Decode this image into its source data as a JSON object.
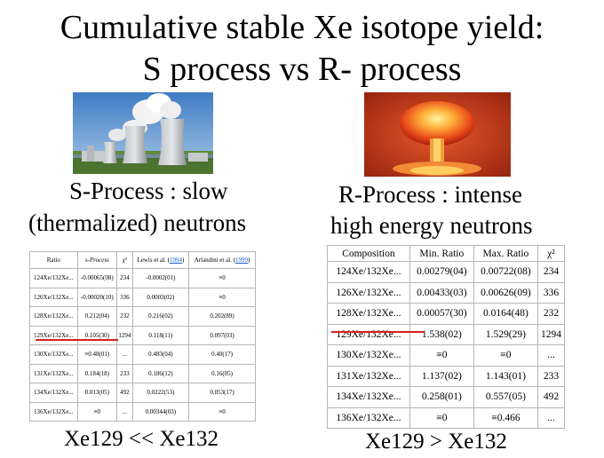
{
  "title": {
    "line1": "Cumulative stable Xe isotope yield:",
    "line2": "S process vs R- process"
  },
  "s_process": {
    "label1": "S-Process : slow",
    "label2": "(thermalized) neutrons",
    "footer": "Xe129 << Xe132",
    "table": {
      "headers": [
        "Ratio",
        "s-Process",
        "χ²",
        "Lewis et al. (",
        "1994",
        ")",
        "Arlandini et al. (",
        "1999",
        ")"
      ],
      "rows": [
        [
          "124Xe/132Xe...",
          "-0.00065(08)",
          "234",
          "-0.0002(01)",
          "≡0"
        ],
        [
          "126Xe/132Xe...",
          "-0.00020(10)",
          "336",
          "0.0003(02)",
          "≡0"
        ],
        [
          "128Xe/132Xe...",
          "0.212(04)",
          "232",
          "0.216(02)",
          "0.202(89)"
        ],
        [
          "129Xe/132Xe...",
          "0.105(30)",
          "1294",
          "0.118(11)",
          "0.097(03)"
        ],
        [
          "130Xe/132Xe...",
          "≡0.48(01)",
          "...",
          "0.483(04)",
          "0.40(17)"
        ],
        [
          "131Xe/132Xe...",
          "0.184(18)",
          "233",
          "0.186(12)",
          "0.16(05)"
        ],
        [
          "134Xe/132Xe...",
          "0.013(05)",
          "492",
          "0.0222(53)",
          "0.053(17)"
        ],
        [
          "136Xe/132Xe...",
          "≡0",
          "...",
          "0.00344(03)",
          "≡0"
        ]
      ]
    }
  },
  "r_process": {
    "label1": "R-Process : intense",
    "label2": "high energy neutrons",
    "footer": "Xe129 > Xe132",
    "table": {
      "headers": [
        "Composition",
        "Min. Ratio",
        "Max. Ratio",
        "χ²"
      ],
      "rows": [
        [
          "124Xe/132Xe...",
          "0.00279(04)",
          "0.00722(08)",
          "234"
        ],
        [
          "126Xe/132Xe...",
          "0.00433(03)",
          "0.00626(09)",
          "336"
        ],
        [
          "128Xe/132Xe...",
          "0.00057(30)",
          "0.0164(48)",
          "232"
        ],
        [
          "129Xe/132Xe...",
          "1.538(02)",
          "1.529(29)",
          "1294"
        ],
        [
          "130Xe/132Xe...",
          "≡0",
          "≡0",
          "..."
        ],
        [
          "131Xe/132Xe...",
          "1.137(02)",
          "1.143(01)",
          "233"
        ],
        [
          "134Xe/132Xe...",
          "0.258(01)",
          "0.557(05)",
          "492"
        ],
        [
          "136Xe/132Xe...",
          "≡0",
          "≡0.466",
          "..."
        ]
      ]
    }
  },
  "colors": {
    "highlight": "#d42020",
    "link": "#1a5cc8"
  }
}
